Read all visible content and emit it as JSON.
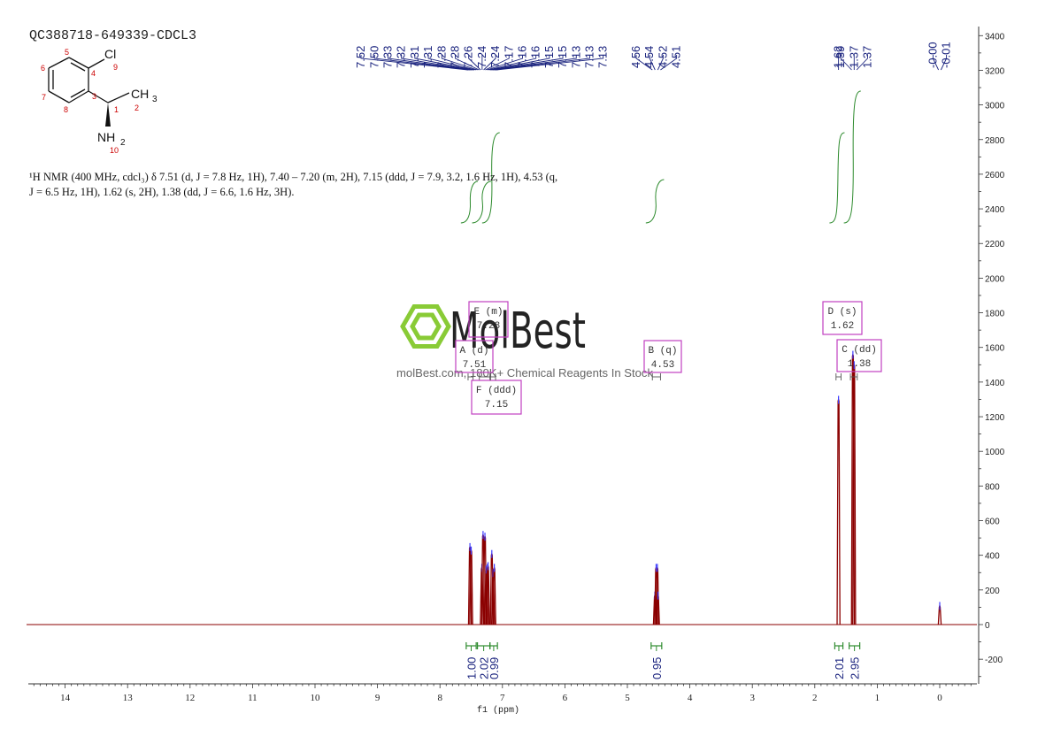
{
  "sample_id": "QC388718-649339-CDCL3",
  "nmr_summary": "¹H NMR (400 MHz, cdcl₃) δ 7.51 (d, J = 7.8 Hz, 1H), 7.40 – 7.20 (m, 2H), 7.15 (ddd, J = 7.9, 3.2, 1.6 Hz, 1H), 4.53 (q, J = 6.5 Hz, 1H), 1.62 (s, 2H), 1.38 (dd, J = 6.6, 1.6 Hz, 3H).",
  "molecule": {
    "substituent_cl": "Cl",
    "substituent_ch3": "CH3",
    "substituent_nh2": "NH2",
    "atom_numbers": [
      "1",
      "2",
      "3",
      "4",
      "5",
      "6",
      "7",
      "8",
      "9",
      "10"
    ]
  },
  "watermark": {
    "brand": "MolBest",
    "tagline": "molBest.com, 180K+ Chemical Reagents In Stock"
  },
  "colors": {
    "spectrum": "#8b0000",
    "peak_label": "#1a237e",
    "integral": "#2e8b2e",
    "multiplet_box": "#c040c0",
    "axis": "#333333",
    "watermark_green": "#7cc520",
    "atom_number": "#cc0000"
  },
  "chart_data": {
    "type": "line",
    "xlabel": "f1 (ppm)",
    "ylabel": "",
    "xlim": [
      14.5,
      -0.6
    ],
    "ylim": [
      -300,
      3450
    ],
    "x_reversed": true,
    "grid": false,
    "x_ticks": [
      14,
      13,
      12,
      11,
      10,
      9,
      8,
      7,
      6,
      5,
      4,
      3,
      2,
      1,
      0
    ],
    "y_ticks": [
      -200,
      0,
      200,
      400,
      600,
      800,
      1000,
      1200,
      1400,
      1600,
      1800,
      2000,
      2200,
      2400,
      2600,
      2800,
      3000,
      3200,
      3400
    ],
    "peaks": [
      {
        "ppm": 7.52,
        "height": 450
      },
      {
        "ppm": 7.5,
        "height": 430
      },
      {
        "ppm": 7.33,
        "height": 330
      },
      {
        "ppm": 7.31,
        "height": 520
      },
      {
        "ppm": 7.28,
        "height": 510
      },
      {
        "ppm": 7.26,
        "height": 320
      },
      {
        "ppm": 7.24,
        "height": 330
      },
      {
        "ppm": 7.23,
        "height": 340
      },
      {
        "ppm": 7.17,
        "height": 410
      },
      {
        "ppm": 7.15,
        "height": 300
      },
      {
        "ppm": 7.13,
        "height": 330
      },
      {
        "ppm": 4.56,
        "height": 170
      },
      {
        "ppm": 4.54,
        "height": 330
      },
      {
        "ppm": 4.52,
        "height": 330
      },
      {
        "ppm": 4.51,
        "height": 170
      },
      {
        "ppm": 1.62,
        "height": 1300
      },
      {
        "ppm": 1.39,
        "height": 1560
      },
      {
        "ppm": 1.37,
        "height": 1500
      },
      {
        "ppm": 0.0,
        "height": 110
      }
    ],
    "peak_labels": [
      {
        "group": "aromatic",
        "ppm_start": 7.55,
        "ppm_end": 7.1,
        "labels": [
          "7.52",
          "7.50",
          "7.33",
          "7.32",
          "7.31",
          "7.31",
          "7.28",
          "7.28",
          "7.26",
          "7.24",
          "7.24",
          "7.17",
          "7.16",
          "7.16",
          "7.15",
          "7.15",
          "7.13",
          "7.13",
          "7.13"
        ]
      },
      {
        "group": "methine",
        "ppm_start": 4.6,
        "ppm_end": 4.47,
        "labels": [
          "4.56",
          "4.54",
          "4.52",
          "4.51"
        ]
      },
      {
        "group": "nh2",
        "ppm_start": 1.62,
        "ppm_end": 1.62,
        "labels": [
          "1.62"
        ]
      },
      {
        "group": "methyl",
        "ppm_start": 1.41,
        "ppm_end": 1.33,
        "labels": [
          "1.39",
          "1.37",
          "1.37"
        ]
      },
      {
        "group": "tms",
        "ppm_start": 0.02,
        "ppm_end": -0.02,
        "labels": [
          "-0.00",
          "-0.01"
        ]
      }
    ],
    "multiplets": [
      {
        "letter": "A",
        "type": "d",
        "shift": "7.51",
        "range": [
          7.55,
          7.47
        ]
      },
      {
        "letter": "E",
        "type": "m",
        "shift": "7.28",
        "range": [
          7.37,
          7.2
        ]
      },
      {
        "letter": "F",
        "type": "ddd",
        "shift": "7.15",
        "range": [
          7.19,
          7.11
        ]
      },
      {
        "letter": "B",
        "type": "q",
        "shift": "4.53",
        "range": [
          4.6,
          4.47
        ]
      },
      {
        "letter": "D",
        "type": "s",
        "shift": "1.62",
        "range": [
          1.66,
          1.58
        ]
      },
      {
        "letter": "C",
        "type": "dd",
        "shift": "1.38",
        "range": [
          1.43,
          1.32
        ]
      }
    ],
    "integrals": [
      {
        "value": "1.00",
        "from": 7.58,
        "to": 7.42
      },
      {
        "value": "2.02",
        "from": 7.4,
        "to": 7.2
      },
      {
        "value": "0.99",
        "from": 7.2,
        "to": 7.08
      },
      {
        "value": "0.95",
        "from": 4.62,
        "to": 4.45
      },
      {
        "value": "2.01",
        "from": 1.68,
        "to": 1.55
      },
      {
        "value": "2.95",
        "from": 1.45,
        "to": 1.28
      }
    ]
  }
}
